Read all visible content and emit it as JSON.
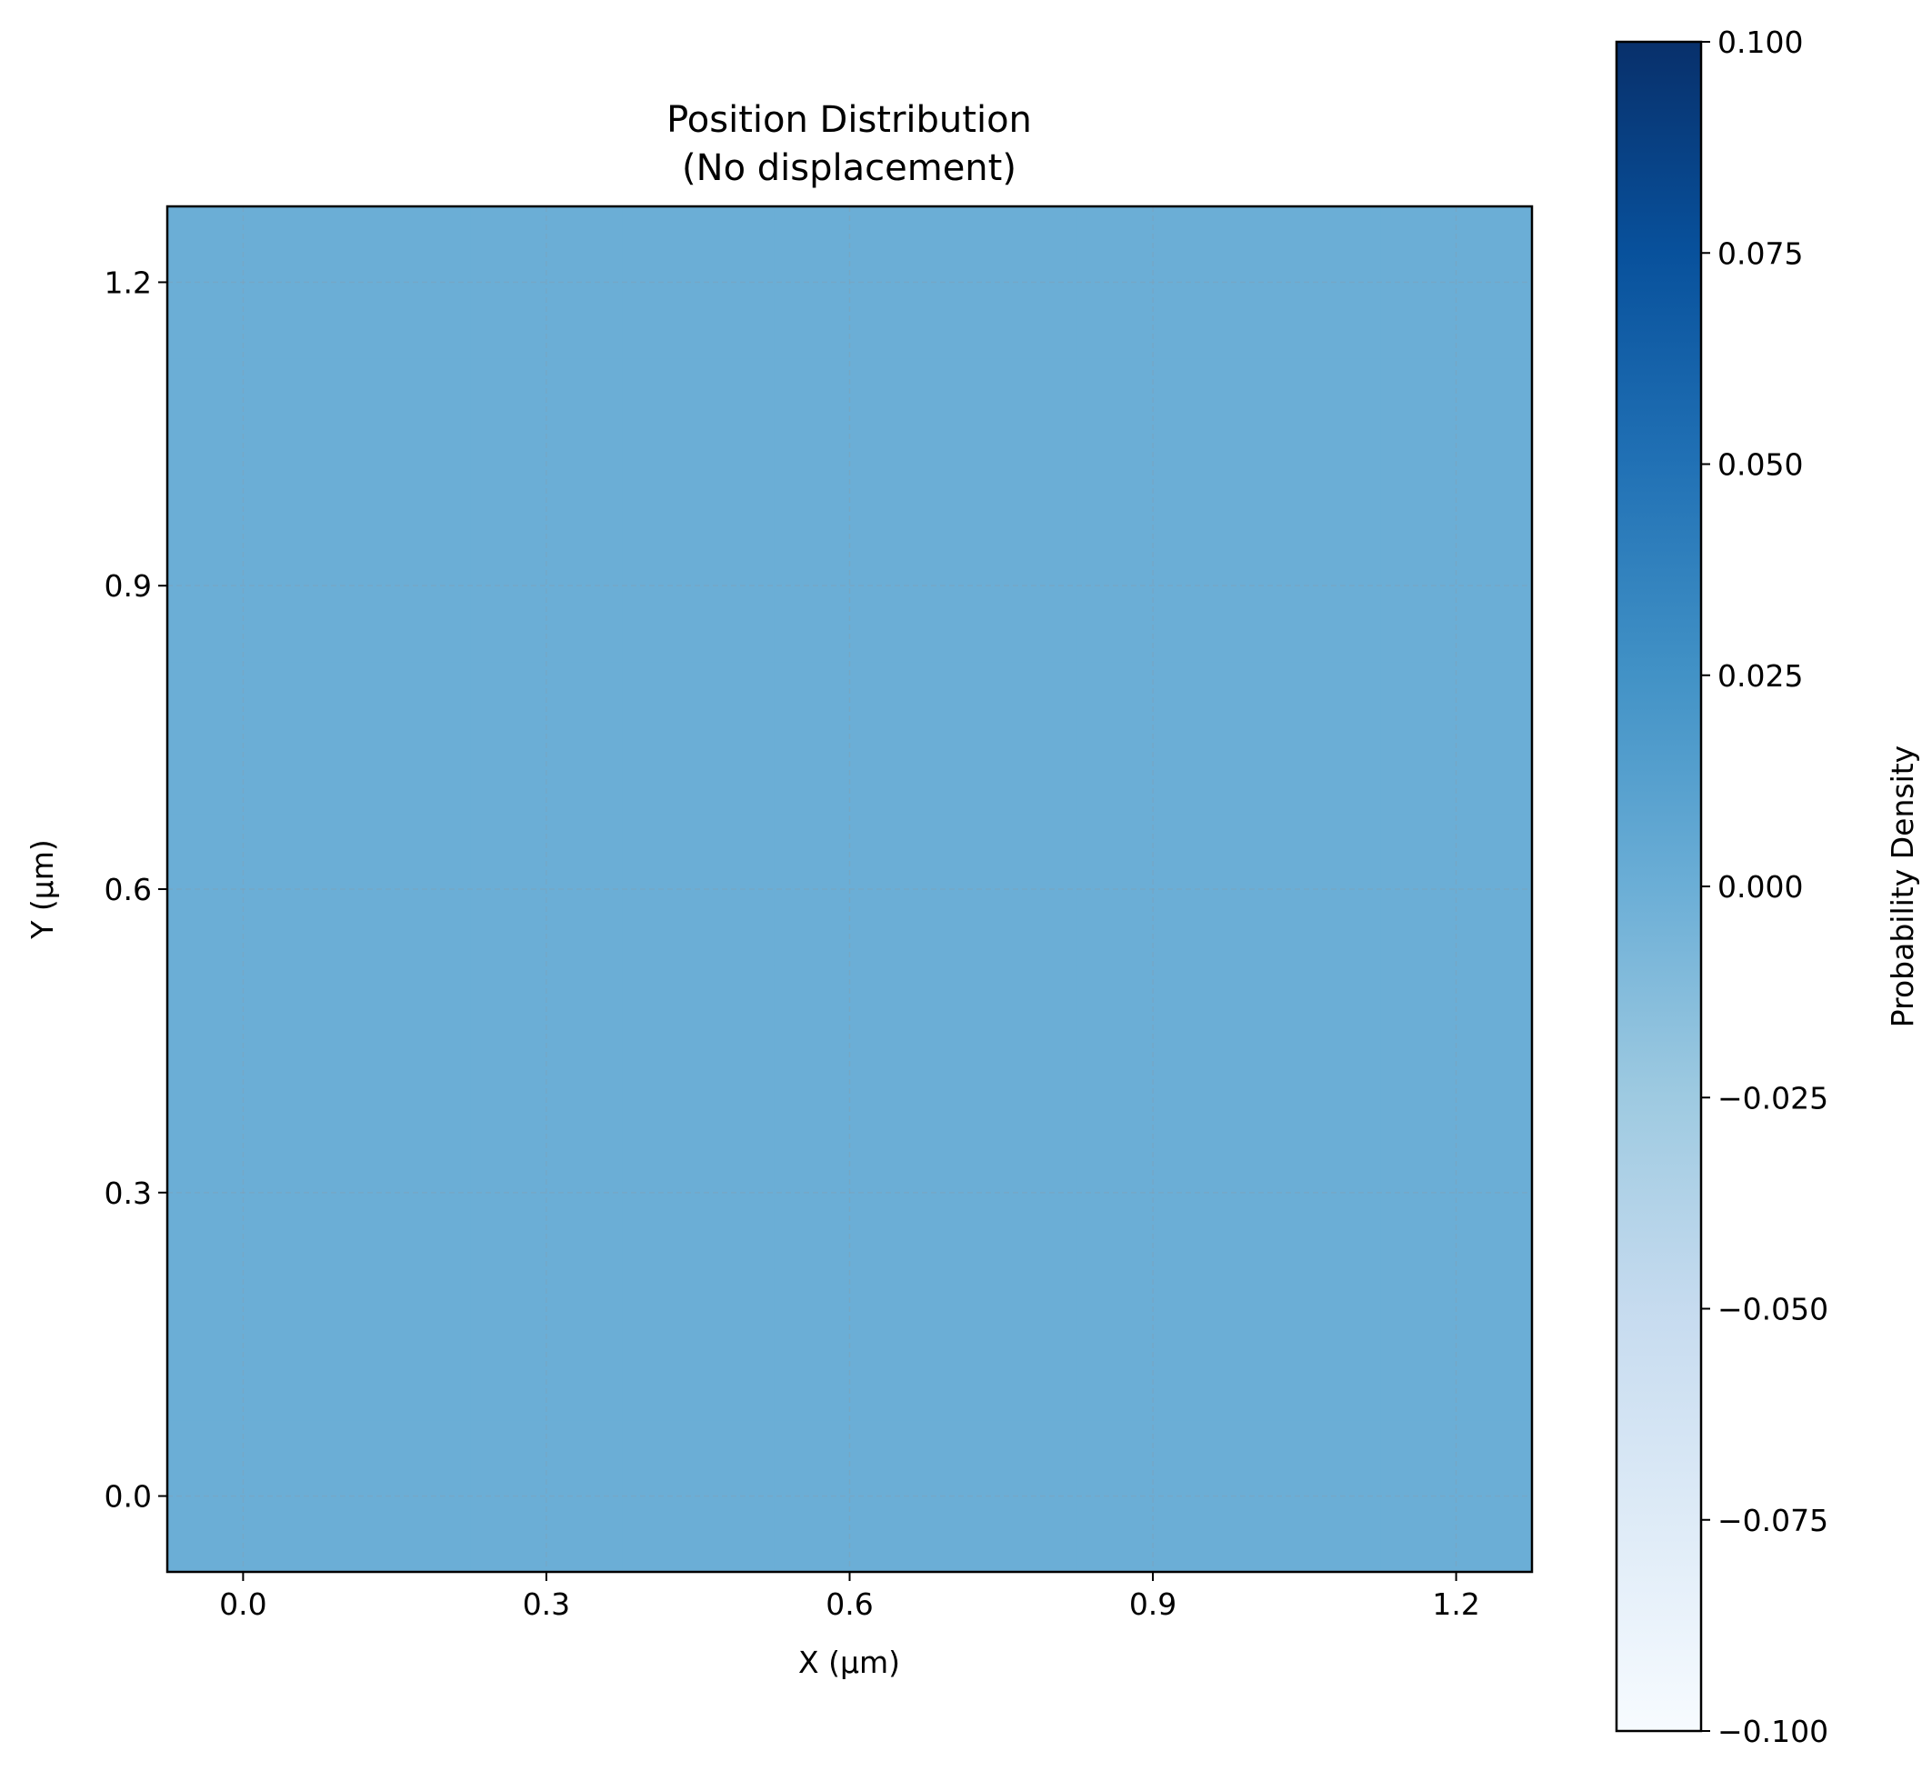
{
  "chart_data": {
    "type": "heatmap",
    "title_lines": [
      "Position Distribution",
      "(No displacement)"
    ],
    "xlabel": "X (µm)",
    "ylabel": "Y (µm)",
    "xlim": [
      -0.075,
      1.275
    ],
    "ylim": [
      -0.075,
      1.275
    ],
    "x_ticks": [
      0.0,
      0.3,
      0.6,
      0.9,
      1.2
    ],
    "x_tick_labels": [
      "0.0",
      "0.3",
      "0.6",
      "0.9",
      "1.2"
    ],
    "y_ticks": [
      0.0,
      0.3,
      0.6,
      0.9,
      1.2
    ],
    "y_tick_labels": [
      "0.0",
      "0.3",
      "0.6",
      "0.9",
      "1.2"
    ],
    "grid": true,
    "values": [
      [
        0,
        0,
        0,
        0,
        0,
        0,
        0,
        0,
        0
      ],
      [
        0,
        0,
        0,
        0,
        0,
        0,
        0,
        0,
        0
      ],
      [
        0,
        0,
        0,
        0,
        0,
        0,
        0,
        0,
        0
      ],
      [
        0,
        0,
        0,
        0,
        0,
        0,
        0,
        0,
        0
      ],
      [
        0,
        0,
        0,
        0,
        0,
        0,
        0,
        0,
        0
      ],
      [
        0,
        0,
        0,
        0,
        0,
        0,
        0,
        0,
        0
      ],
      [
        0,
        0,
        0,
        0,
        0,
        0,
        0,
        0,
        0
      ],
      [
        0,
        0,
        0,
        0,
        0,
        0,
        0,
        0,
        0
      ],
      [
        0,
        0,
        0,
        0,
        0,
        0,
        0,
        0,
        0
      ]
    ],
    "colorbar": {
      "label": "Probability Density",
      "range": [
        -0.1,
        0.1
      ],
      "ticks": [
        0.1,
        0.075,
        0.05,
        0.025,
        0.0,
        -0.025,
        -0.05,
        -0.075,
        -0.1
      ],
      "tick_labels": [
        "0.100",
        "0.075",
        "0.050",
        "0.025",
        "0.000",
        "−0.025",
        "−0.050",
        "−0.075",
        "−0.100"
      ],
      "colormap": "Blues",
      "colormap_stops": [
        "#f7fbff",
        "#deebf7",
        "#c6dbef",
        "#9ecae1",
        "#6baed6",
        "#4292c6",
        "#2171b5",
        "#08519c",
        "#08306b"
      ]
    }
  }
}
